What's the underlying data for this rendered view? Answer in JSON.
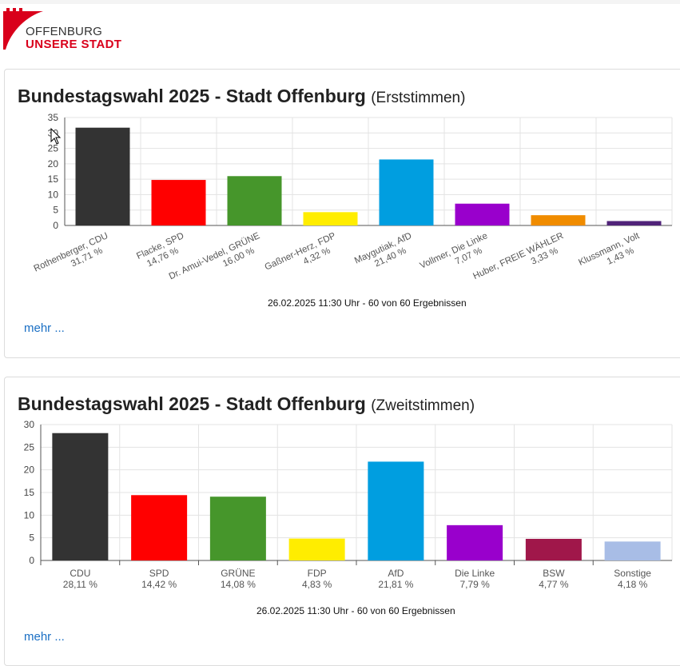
{
  "logo": {
    "line1": "OFFENBURG",
    "line2": "UNSERE STADT",
    "brand_color": "#d9001b"
  },
  "charts": [
    {
      "title": "Bundestagswahl 2025 - Stadt Offenburg",
      "subtitle": "(Erststimmen)",
      "footnote": "26.02.2025 11:30 Uhr - 60 von 60 Ergebnissen",
      "more_link": "mehr ..."
    },
    {
      "title": "Bundestagswahl 2025 - Stadt Offenburg",
      "subtitle": "(Zweitstimmen)",
      "footnote": "26.02.2025 11:30 Uhr - 60 von 60 Ergebnissen",
      "more_link": "mehr ..."
    }
  ],
  "chart_data": [
    {
      "type": "bar",
      "title": "Bundestagswahl 2025 - Stadt Offenburg (Erststimmen)",
      "ylim": [
        0,
        35
      ],
      "yticks": [
        0,
        5,
        10,
        15,
        20,
        25,
        30,
        35
      ],
      "categories": [
        "Rothenberger, CDU",
        "Flacke, SPD",
        "Dr. Amui-Vedel, GRÜNE",
        "Gaßner-Herz, FDP",
        "Maygutiak, AfD",
        "Vollmer, Die Linke",
        "Huber, FREIE WÄHLER",
        "Klussmann, Volt"
      ],
      "value_labels": [
        "31,71 %",
        "14,76 %",
        "16,00 %",
        "4,32 %",
        "21,40 %",
        "7,07 %",
        "3,33 %",
        "1,43 %"
      ],
      "values": [
        31.71,
        14.76,
        16.0,
        4.32,
        21.4,
        7.07,
        3.33,
        1.43
      ],
      "colors": [
        "#333333",
        "#ff0000",
        "#46962b",
        "#ffed00",
        "#009ee0",
        "#9900cc",
        "#f08c00",
        "#502379"
      ],
      "grid": true
    },
    {
      "type": "bar",
      "title": "Bundestagswahl 2025 - Stadt Offenburg (Zweitstimmen)",
      "ylim": [
        0,
        30
      ],
      "yticks": [
        0,
        5,
        10,
        15,
        20,
        25,
        30
      ],
      "categories": [
        "CDU",
        "SPD",
        "GRÜNE",
        "FDP",
        "AfD",
        "Die Linke",
        "BSW",
        "Sonstige"
      ],
      "value_labels": [
        "28,11 %",
        "14,42 %",
        "14,08 %",
        "4,83 %",
        "21,81 %",
        "7,79 %",
        "4,77 %",
        "4,18 %"
      ],
      "values": [
        28.11,
        14.42,
        14.08,
        4.83,
        21.81,
        7.79,
        4.77,
        4.18
      ],
      "colors": [
        "#333333",
        "#ff0000",
        "#46962b",
        "#ffed00",
        "#009ee0",
        "#9900cc",
        "#a0174a",
        "#a8bde6"
      ],
      "grid": true
    }
  ]
}
